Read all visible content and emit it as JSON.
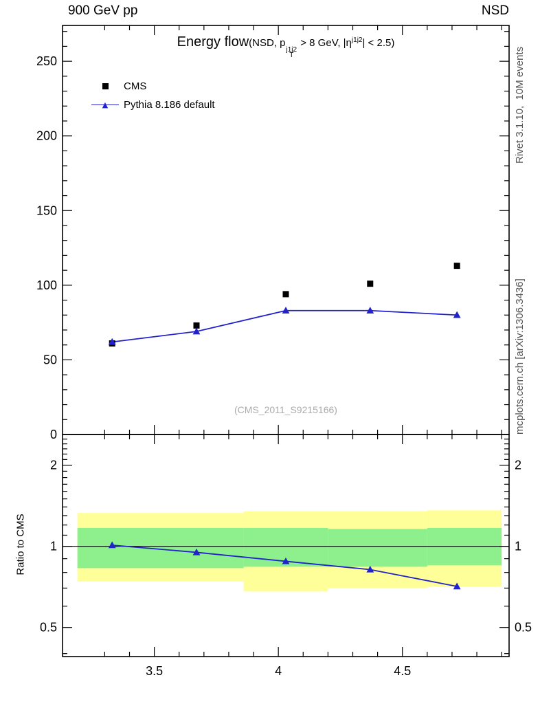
{
  "header": {
    "left": "900 GeV pp",
    "right": "NSD"
  },
  "title": {
    "main": "Energy flow",
    "cond_open": "(NSD, p",
    "p_sup": "j1j2",
    "p_sub": "T",
    "cond_mid": " > 8 GeV, |η",
    "eta_sup": "j1j2",
    "cond_close": "| < 2.5)"
  },
  "legend": {
    "items": [
      {
        "label": "CMS",
        "marker": "black-square"
      },
      {
        "label": "Pythia 8.186 default",
        "marker": "blue-triangle-line"
      }
    ]
  },
  "watermark": "(CMS_2011_S9215166)",
  "side_labels": {
    "rivet": "Rivet 3.1.10,  10M events",
    "mcplots": "mcplots.cern.ch [arXiv:1306.3436]"
  },
  "colors": {
    "pythia_blue": "#2222cc",
    "cms_black": "#000000",
    "band_yellow": "#ffff99",
    "band_green": "#8df08d",
    "watermark_gray": "#aaaaaa",
    "side_label_gray": "#555555"
  },
  "chart_data": {
    "type": "scatter",
    "title": "Energy flow (NSD, pT^j1j2 > 8 GeV, |eta^j1j2| < 2.5)",
    "x": [
      3.33,
      3.67,
      4.03,
      4.37,
      4.72
    ],
    "xlim": [
      3.13,
      4.93
    ],
    "xticks": [
      3.5,
      4,
      4.5
    ],
    "xtick_labels": [
      "3.5",
      "4",
      "4.5"
    ],
    "main_panel": {
      "ylim": [
        0,
        274
      ],
      "yticks": [
        0,
        50,
        100,
        150,
        200,
        250
      ],
      "grid": false,
      "series": [
        {
          "name": "CMS",
          "marker": "square",
          "color": "#000000",
          "line": false,
          "values": [
            61,
            73,
            94,
            101,
            113
          ]
        },
        {
          "name": "Pythia 8.186 default",
          "marker": "triangle",
          "color": "#2222cc",
          "line": true,
          "values": [
            62,
            69,
            83,
            83,
            80
          ]
        }
      ]
    },
    "ratio_panel": {
      "ylabel": "Ratio to CMS",
      "yscale": "log",
      "ylim": [
        0.39,
        2.6
      ],
      "yticks": [
        0.5,
        1,
        2
      ],
      "ytick_labels": [
        "0.5",
        "1",
        "2"
      ],
      "reference_line": 1,
      "ratio_series": {
        "name": "Pythia 8.186 default / CMS",
        "color": "#2222cc",
        "marker": "triangle",
        "values": [
          1.01,
          0.95,
          0.88,
          0.82,
          0.71
        ]
      },
      "bands": [
        {
          "x0": 3.19,
          "x1": 3.86,
          "yellow_lo": 0.74,
          "yellow_hi": 1.33,
          "green_lo": 0.83,
          "green_hi": 1.17
        },
        {
          "x0": 3.86,
          "x1": 4.2,
          "yellow_lo": 0.68,
          "yellow_hi": 1.35,
          "green_lo": 0.84,
          "green_hi": 1.17
        },
        {
          "x0": 4.2,
          "x1": 4.6,
          "yellow_lo": 0.7,
          "yellow_hi": 1.35,
          "green_lo": 0.84,
          "green_hi": 1.16
        },
        {
          "x0": 4.6,
          "x1": 4.9,
          "yellow_lo": 0.71,
          "yellow_hi": 1.36,
          "green_lo": 0.85,
          "green_hi": 1.17
        }
      ]
    }
  }
}
